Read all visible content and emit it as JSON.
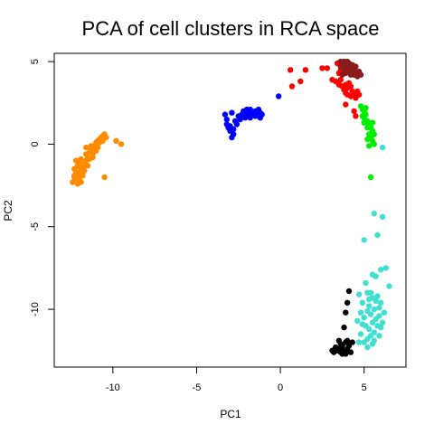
{
  "chart_data": {
    "type": "scatter",
    "title": "PCA of cell clusters in RCA space",
    "xlabel": "PC1",
    "ylabel": "PC2",
    "xlim": [
      -13.5,
      7.5
    ],
    "ylim": [
      -13.5,
      5.5
    ],
    "x_ticks": [
      -10,
      -5,
      0,
      5
    ],
    "x_tick_labels": [
      "-10",
      "-5",
      "0",
      "5"
    ],
    "y_ticks": [
      -10,
      -5,
      0,
      5
    ],
    "y_tick_labels": [
      "-10",
      "-5",
      "0",
      "5"
    ],
    "grid": false,
    "series": [
      {
        "color": "#FF8C00",
        "points": [
          [
            -12.4,
            -2.3
          ],
          [
            -12.3,
            -2.0
          ],
          [
            -12.2,
            -1.7
          ],
          [
            -12.3,
            -1.5
          ],
          [
            -12.1,
            -1.3
          ],
          [
            -12.0,
            -1.1
          ],
          [
            -11.9,
            -0.9
          ],
          [
            -12.2,
            -2.2
          ],
          [
            -12.0,
            -2.1
          ],
          [
            -11.8,
            -1.9
          ],
          [
            -11.9,
            -1.6
          ],
          [
            -11.7,
            -1.2
          ],
          [
            -11.6,
            -1.0
          ],
          [
            -11.5,
            -0.8
          ],
          [
            -11.6,
            -0.6
          ],
          [
            -11.4,
            -0.5
          ],
          [
            -11.3,
            -0.3
          ],
          [
            -11.2,
            -0.2
          ],
          [
            -11.1,
            -0.1
          ],
          [
            -11.0,
            0.1
          ],
          [
            -10.9,
            0.2
          ],
          [
            -10.8,
            0.3
          ],
          [
            -10.7,
            0.4
          ],
          [
            -10.6,
            0.5
          ],
          [
            -10.8,
            0.1
          ],
          [
            -11.0,
            -0.4
          ],
          [
            -11.2,
            -0.6
          ],
          [
            -11.5,
            -1.3
          ],
          [
            -11.7,
            -1.6
          ],
          [
            -12.1,
            -2.4
          ],
          [
            -11.9,
            -2.3
          ],
          [
            -12.3,
            -1.9
          ],
          [
            -12.0,
            -1.4
          ],
          [
            -11.8,
            -1.4
          ],
          [
            -11.4,
            -0.9
          ],
          [
            -11.2,
            -0.8
          ],
          [
            -10.9,
            -0.2
          ],
          [
            -10.6,
            0.2
          ],
          [
            -10.4,
            0.4
          ],
          [
            -10.5,
            0.6
          ],
          [
            -9.8,
            0.2
          ],
          [
            -9.5,
            0.0
          ],
          [
            -10.5,
            -2.0
          ],
          [
            -11.3,
            -0.1
          ],
          [
            -11.6,
            -0.2
          ],
          [
            -12.2,
            -1.0
          ],
          [
            -11.9,
            -1.8
          ],
          [
            -12.1,
            -2.0
          ]
        ]
      },
      {
        "color": "#0000FF",
        "points": [
          [
            -3.3,
            1.8
          ],
          [
            -3.2,
            1.5
          ],
          [
            -3.2,
            1.2
          ],
          [
            -3.1,
            1.0
          ],
          [
            -3.0,
            0.8
          ],
          [
            -2.8,
            0.6
          ],
          [
            -2.9,
            0.4
          ],
          [
            -3.0,
            1.1
          ],
          [
            -2.5,
            1.7
          ],
          [
            -2.3,
            1.8
          ],
          [
            -2.2,
            2.0
          ],
          [
            -2.0,
            1.9
          ],
          [
            -1.9,
            1.7
          ],
          [
            -1.8,
            2.1
          ],
          [
            -1.7,
            1.9
          ],
          [
            -1.6,
            1.8
          ],
          [
            -1.5,
            2.0
          ],
          [
            -1.4,
            1.9
          ],
          [
            -1.3,
            2.1
          ],
          [
            -1.2,
            1.9
          ],
          [
            -1.1,
            1.8
          ],
          [
            -2.1,
            1.6
          ],
          [
            -2.4,
            1.5
          ],
          [
            -2.6,
            1.2
          ],
          [
            -2.8,
            0.9
          ],
          [
            -2.7,
            1.4
          ],
          [
            -1.8,
            1.6
          ],
          [
            -1.5,
            1.7
          ],
          [
            -2.0,
            2.1
          ],
          [
            -1.2,
            1.6
          ],
          [
            -0.1,
            2.9
          ],
          [
            -2.9,
            1.9
          ]
        ]
      },
      {
        "color": "#FF0000",
        "points": [
          [
            0.6,
            4.5
          ],
          [
            0.7,
            3.5
          ],
          [
            1.2,
            3.8
          ],
          [
            1.5,
            4.5
          ],
          [
            2.5,
            4.6
          ],
          [
            2.8,
            4.6
          ],
          [
            3.1,
            3.9
          ],
          [
            3.3,
            3.8
          ],
          [
            3.5,
            3.6
          ],
          [
            3.5,
            4.3
          ],
          [
            3.6,
            3.9
          ],
          [
            3.7,
            3.5
          ],
          [
            3.8,
            3.3
          ],
          [
            3.9,
            3.6
          ],
          [
            4.0,
            3.4
          ],
          [
            4.1,
            3.7
          ],
          [
            4.2,
            3.5
          ],
          [
            4.3,
            3.2
          ],
          [
            4.4,
            3.0
          ],
          [
            4.5,
            2.8
          ],
          [
            4.2,
            2.9
          ],
          [
            4.0,
            3.0
          ],
          [
            3.9,
            3.1
          ],
          [
            3.6,
            4.5
          ],
          [
            3.4,
            4.9
          ],
          [
            4.6,
            3.2
          ],
          [
            4.7,
            3.0
          ],
          [
            4.4,
            2.0
          ],
          [
            4.5,
            1.7
          ],
          [
            3.9,
            2.4
          ]
        ]
      },
      {
        "color": "#8B1A1A",
        "points": [
          [
            3.6,
            4.7
          ],
          [
            3.7,
            4.9
          ],
          [
            3.8,
            5.0
          ],
          [
            3.9,
            4.8
          ],
          [
            4.0,
            4.6
          ],
          [
            4.1,
            4.9
          ],
          [
            4.2,
            4.7
          ],
          [
            4.3,
            4.5
          ],
          [
            4.4,
            4.6
          ],
          [
            4.5,
            4.4
          ],
          [
            4.6,
            4.3
          ],
          [
            4.7,
            4.4
          ],
          [
            4.8,
            4.2
          ],
          [
            4.3,
            4.8
          ],
          [
            4.0,
            5.0
          ],
          [
            3.8,
            4.5
          ],
          [
            3.9,
            4.3
          ],
          [
            4.1,
            4.4
          ],
          [
            4.5,
            4.7
          ],
          [
            4.6,
            4.1
          ],
          [
            3.7,
            4.2
          ],
          [
            4.2,
            4.2
          ],
          [
            3.6,
            5.0
          ],
          [
            4.4,
            4.2
          ]
        ]
      },
      {
        "color": "#00EE00",
        "points": [
          [
            4.8,
            2.3
          ],
          [
            4.9,
            2.1
          ],
          [
            5.0,
            2.0
          ],
          [
            5.1,
            1.8
          ],
          [
            5.0,
            1.6
          ],
          [
            5.2,
            1.4
          ],
          [
            5.3,
            1.2
          ],
          [
            5.4,
            1.0
          ],
          [
            5.5,
            0.8
          ],
          [
            5.3,
            0.6
          ],
          [
            5.4,
            0.4
          ],
          [
            5.5,
            0.2
          ],
          [
            5.6,
            0.0
          ],
          [
            5.2,
            1.0
          ],
          [
            5.0,
            1.3
          ],
          [
            4.9,
            1.7
          ],
          [
            5.1,
            2.2
          ],
          [
            5.5,
            1.3
          ],
          [
            5.6,
            0.6
          ],
          [
            5.3,
            -0.1
          ],
          [
            5.4,
            -2.0
          ],
          [
            5.2,
            0.3
          ]
        ]
      },
      {
        "color": "#40E0D0",
        "points": [
          [
            6.1,
            -0.2
          ],
          [
            5.6,
            -4.2
          ],
          [
            6.1,
            -4.4
          ],
          [
            5.0,
            -5.8
          ],
          [
            5.8,
            -5.5
          ],
          [
            5.1,
            -8.4
          ],
          [
            5.5,
            -7.9
          ],
          [
            6.0,
            -7.6
          ],
          [
            6.3,
            -7.5
          ],
          [
            5.7,
            -8.0
          ],
          [
            6.5,
            -8.6
          ],
          [
            4.7,
            -9.1
          ],
          [
            5.2,
            -9.0
          ],
          [
            5.3,
            -9.4
          ],
          [
            5.5,
            -9.3
          ],
          [
            5.8,
            -9.2
          ],
          [
            6.0,
            -9.6
          ],
          [
            5.9,
            -9.9
          ],
          [
            5.6,
            -10.0
          ],
          [
            5.4,
            -10.3
          ],
          [
            5.2,
            -10.1
          ],
          [
            5.0,
            -10.5
          ],
          [
            4.9,
            -10.9
          ],
          [
            5.1,
            -11.0
          ],
          [
            5.3,
            -11.2
          ],
          [
            5.5,
            -10.8
          ],
          [
            5.7,
            -10.6
          ],
          [
            5.9,
            -10.4
          ],
          [
            6.1,
            -10.8
          ],
          [
            5.8,
            -11.0
          ],
          [
            5.6,
            -11.4
          ],
          [
            5.4,
            -11.6
          ],
          [
            5.2,
            -11.8
          ],
          [
            5.0,
            -12.0
          ],
          [
            5.5,
            -12.1
          ],
          [
            4.8,
            -11.5
          ],
          [
            4.6,
            -10.7
          ],
          [
            4.9,
            -9.6
          ],
          [
            5.3,
            -9.8
          ],
          [
            5.7,
            -9.5
          ],
          [
            6.0,
            -11.1
          ],
          [
            5.9,
            -11.6
          ],
          [
            5.2,
            -12.3
          ],
          [
            4.7,
            -12.0
          ],
          [
            6.2,
            -10.2
          ],
          [
            5.4,
            -9.0
          ],
          [
            4.8,
            -10.2
          ],
          [
            5.6,
            -11.9
          ]
        ]
      },
      {
        "color": "#000000",
        "points": [
          [
            4.1,
            -8.9
          ],
          [
            4.0,
            -9.6
          ],
          [
            3.9,
            -10.2
          ],
          [
            3.8,
            -11.1
          ],
          [
            4.0,
            -11.9
          ],
          [
            3.9,
            -12.0
          ],
          [
            3.7,
            -12.2
          ],
          [
            3.6,
            -12.1
          ],
          [
            3.5,
            -12.4
          ],
          [
            3.4,
            -12.5
          ],
          [
            3.3,
            -12.3
          ],
          [
            3.2,
            -12.6
          ],
          [
            3.6,
            -12.6
          ],
          [
            3.8,
            -12.5
          ],
          [
            4.0,
            -12.4
          ],
          [
            4.1,
            -12.2
          ],
          [
            3.9,
            -12.7
          ],
          [
            3.7,
            -12.7
          ],
          [
            4.2,
            -12.6
          ],
          [
            3.5,
            -11.9
          ],
          [
            3.1,
            -12.5
          ],
          [
            4.3,
            -12.0
          ]
        ]
      }
    ]
  }
}
